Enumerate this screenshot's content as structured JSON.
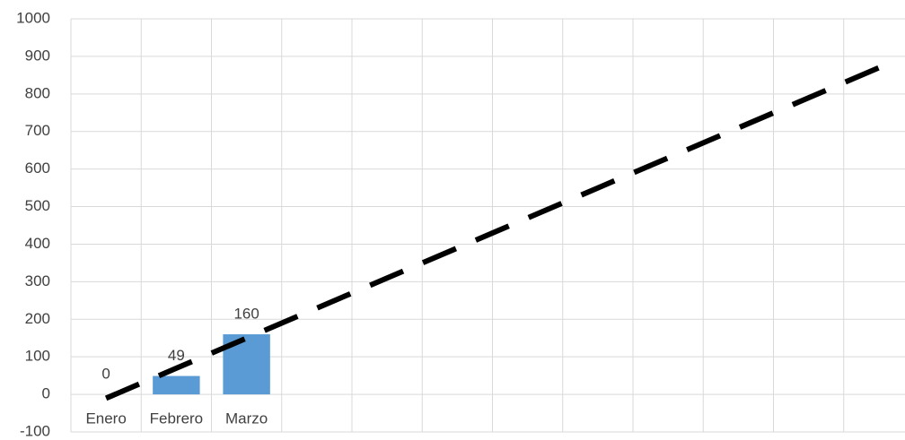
{
  "chart_data": {
    "type": "bar",
    "categories": [
      "Enero",
      "Febrero",
      "Marzo",
      null,
      null,
      null,
      null,
      null,
      null,
      null,
      null,
      null
    ],
    "values": [
      0,
      49,
      160,
      null,
      null,
      null,
      null,
      null,
      null,
      null,
      null,
      null
    ],
    "color": "#5b9bd5",
    "trendline": {
      "values": [
        -10.3,
        69.7,
        149.7,
        229.7,
        309.7,
        389.7,
        469.7,
        549.7,
        629.7,
        709.7,
        789.7,
        869.7
      ],
      "color": "#000000",
      "dashed": true
    },
    "ylim": [
      -100,
      1000
    ],
    "yticks": [
      -100,
      0,
      100,
      200,
      300,
      400,
      500,
      600,
      700,
      800,
      900,
      1000
    ],
    "grid": true
  }
}
